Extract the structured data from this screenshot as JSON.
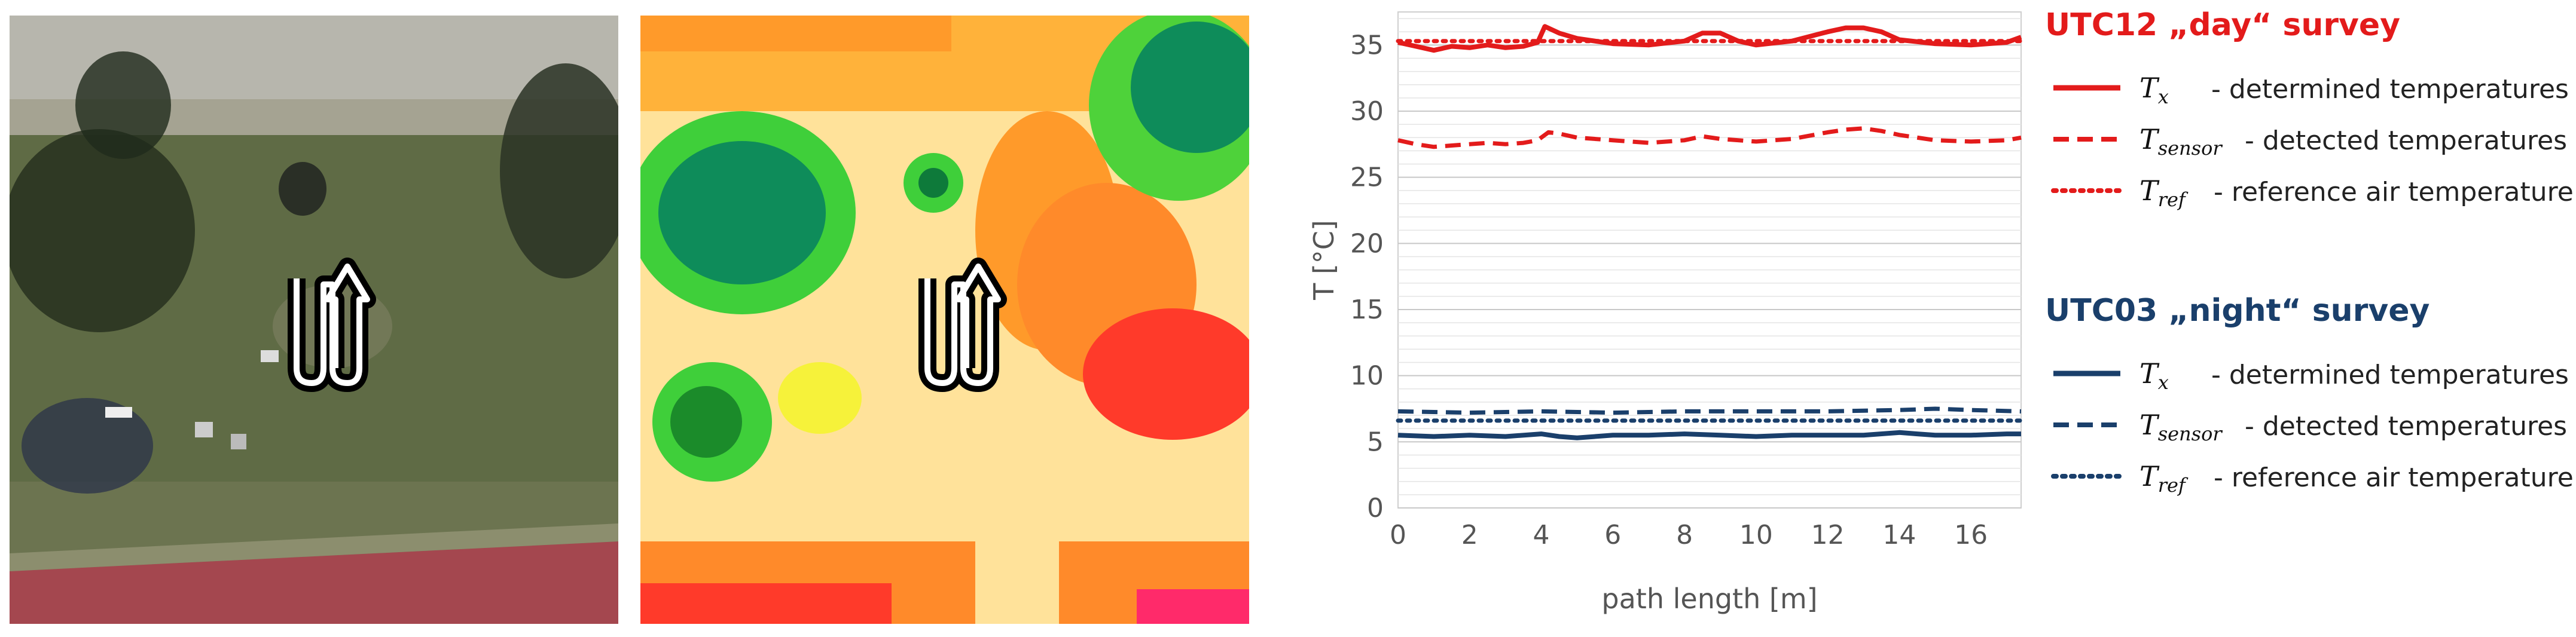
{
  "chart_data": {
    "type": "line",
    "xlabel": "path length [m]",
    "ylabel": "T [°C]",
    "xlim": [
      0,
      17.4
    ],
    "ylim": [
      0,
      37.5
    ],
    "xticks": [
      0,
      2,
      4,
      6,
      8,
      10,
      12,
      14,
      16
    ],
    "yticks": [
      0,
      5,
      10,
      15,
      20,
      25,
      30,
      35
    ],
    "grid": true,
    "legend_position": "right",
    "groups": [
      {
        "title": "UTC12 „day“ survey",
        "color": "#e31b1b",
        "series": [
          {
            "symbol": "T",
            "subscript": "x",
            "label": "- determined temperatures",
            "style": "solid",
            "x": [
              0,
              0.5,
              1,
              1.5,
              2,
              2.5,
              3,
              3.5,
              3.9,
              4.1,
              4.5,
              5,
              6,
              7,
              8,
              8.5,
              9,
              9.5,
              10,
              11,
              12,
              12.5,
              13,
              13.5,
              14,
              15,
              16,
              17,
              17.4
            ],
            "y": [
              35.2,
              34.9,
              34.6,
              34.9,
              34.8,
              35.0,
              34.8,
              34.9,
              35.2,
              36.4,
              35.9,
              35.5,
              35.1,
              35.0,
              35.3,
              35.9,
              35.9,
              35.3,
              35.0,
              35.3,
              36.0,
              36.3,
              36.3,
              36.0,
              35.4,
              35.1,
              35.0,
              35.2,
              35.6
            ]
          },
          {
            "symbol": "T",
            "subscript": "sensor",
            "label": "- detected temperatures",
            "style": "dashed",
            "x": [
              0,
              0.5,
              1,
              1.5,
              2,
              2.5,
              3,
              3.5,
              3.9,
              4.2,
              4.5,
              5,
              6,
              7,
              8,
              8.5,
              9,
              10,
              11,
              12,
              12.5,
              13,
              13.5,
              14,
              15,
              16,
              17,
              17.4
            ],
            "y": [
              27.8,
              27.5,
              27.3,
              27.4,
              27.5,
              27.6,
              27.5,
              27.6,
              27.8,
              28.4,
              28.3,
              28.0,
              27.8,
              27.6,
              27.8,
              28.1,
              27.9,
              27.7,
              27.9,
              28.4,
              28.6,
              28.7,
              28.5,
              28.2,
              27.8,
              27.7,
              27.8,
              28.0
            ]
          },
          {
            "symbol": "T",
            "subscript": "ref",
            "label": "- reference air temperature",
            "style": "dotted",
            "x": [
              0,
              17.4
            ],
            "y": [
              35.3,
              35.3
            ]
          }
        ]
      },
      {
        "title": "UTC03 „night“ survey",
        "color": "#1a3f6b",
        "series": [
          {
            "symbol": "T",
            "subscript": "x",
            "label": "- determined temperatures",
            "style": "solid",
            "x": [
              0,
              1,
              2,
              3,
              4,
              4.5,
              5,
              6,
              7,
              8,
              9,
              10,
              11,
              12,
              13,
              14,
              14.5,
              15,
              16,
              17,
              17.4
            ],
            "y": [
              5.5,
              5.4,
              5.5,
              5.4,
              5.6,
              5.4,
              5.3,
              5.5,
              5.5,
              5.6,
              5.5,
              5.4,
              5.5,
              5.5,
              5.5,
              5.7,
              5.6,
              5.5,
              5.5,
              5.6,
              5.6
            ]
          },
          {
            "symbol": "T",
            "subscript": "sensor",
            "label": "- detected temperatures",
            "style": "dashed",
            "x": [
              0,
              2,
              4,
              6,
              8,
              10,
              12,
              14,
              15,
              16,
              17.4
            ],
            "y": [
              7.3,
              7.2,
              7.3,
              7.2,
              7.3,
              7.3,
              7.3,
              7.4,
              7.5,
              7.4,
              7.3
            ]
          },
          {
            "symbol": "T",
            "subscript": "ref",
            "label": "- reference air temperature",
            "style": "dotted",
            "x": [
              0,
              17.4
            ],
            "y": [
              6.6,
              6.6
            ]
          }
        ]
      }
    ]
  }
}
